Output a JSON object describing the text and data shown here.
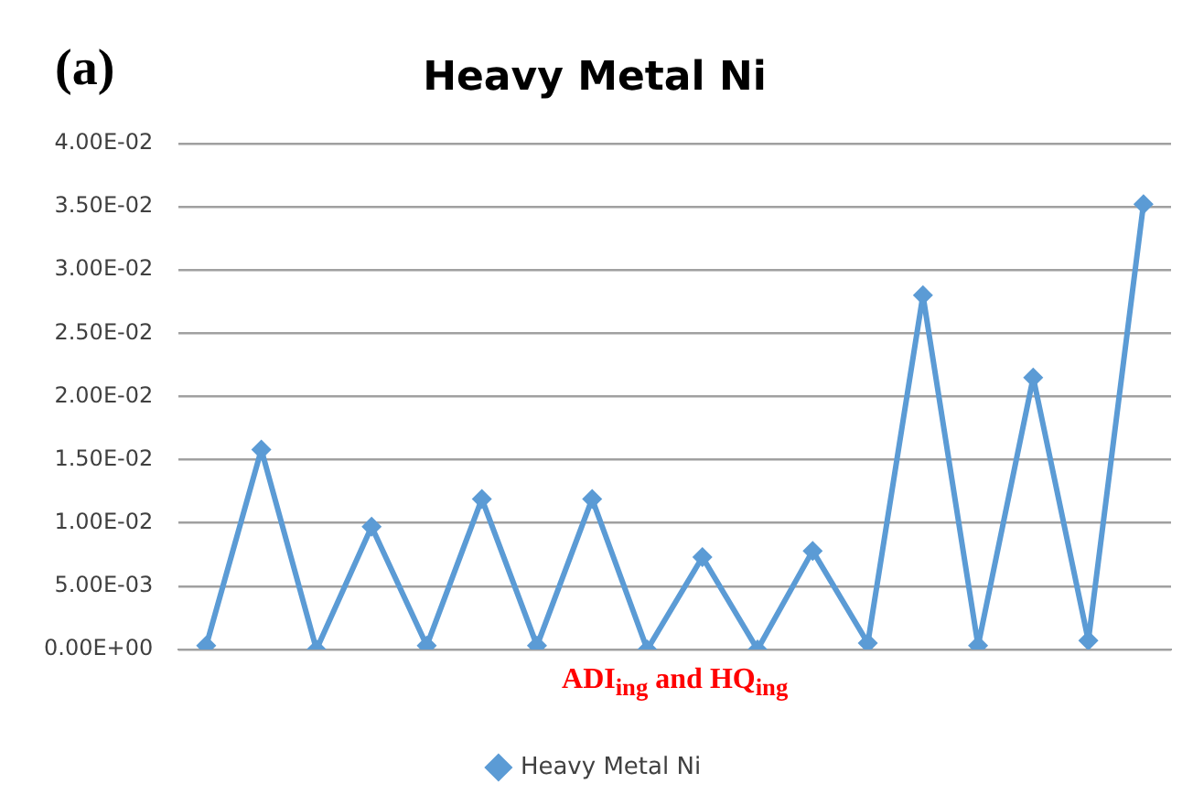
{
  "chart_data": {
    "type": "line",
    "title": "Heavy Metal Ni",
    "xlabel": "ADI$_{ing}$ and HQ$_{ing}$",
    "annotations": [
      "(a)"
    ],
    "categories": [
      null,
      null,
      null,
      null,
      null,
      null,
      null,
      null,
      null,
      null,
      null,
      null,
      null,
      null,
      null,
      null,
      null,
      null
    ],
    "series": [
      {
        "name": "Heavy Metal Ni",
        "color": "#5b9bd5",
        "values": [
          0.0003,
          0.0158,
          0,
          0.0097,
          0.0003,
          0.0119,
          0.0003,
          0.0119,
          0,
          0.0073,
          0,
          0.0078,
          0.0005,
          0.028,
          0.0003,
          0.0215,
          0.0007,
          0.0352
        ]
      }
    ],
    "ylim": [
      0,
      0.04
    ],
    "yticks": [
      {
        "value": 0,
        "label": "0.00E+00"
      },
      {
        "value": 0.005,
        "label": "5.00E-03"
      },
      {
        "value": 0.01,
        "label": "1.00E-02"
      },
      {
        "value": 0.015,
        "label": "1.50E-02"
      },
      {
        "value": 0.02,
        "label": "2.00E-02"
      },
      {
        "value": 0.025,
        "label": "2.50E-02"
      },
      {
        "value": 0.03,
        "label": "3.00E-02"
      },
      {
        "value": 0.035,
        "label": "3.50E-02"
      },
      {
        "value": 0.04,
        "label": "4.00E-02"
      }
    ],
    "grid": "y",
    "legend": "bottom",
    "marker": "diamond",
    "line_style": "solid",
    "tick_labels": "y"
  }
}
